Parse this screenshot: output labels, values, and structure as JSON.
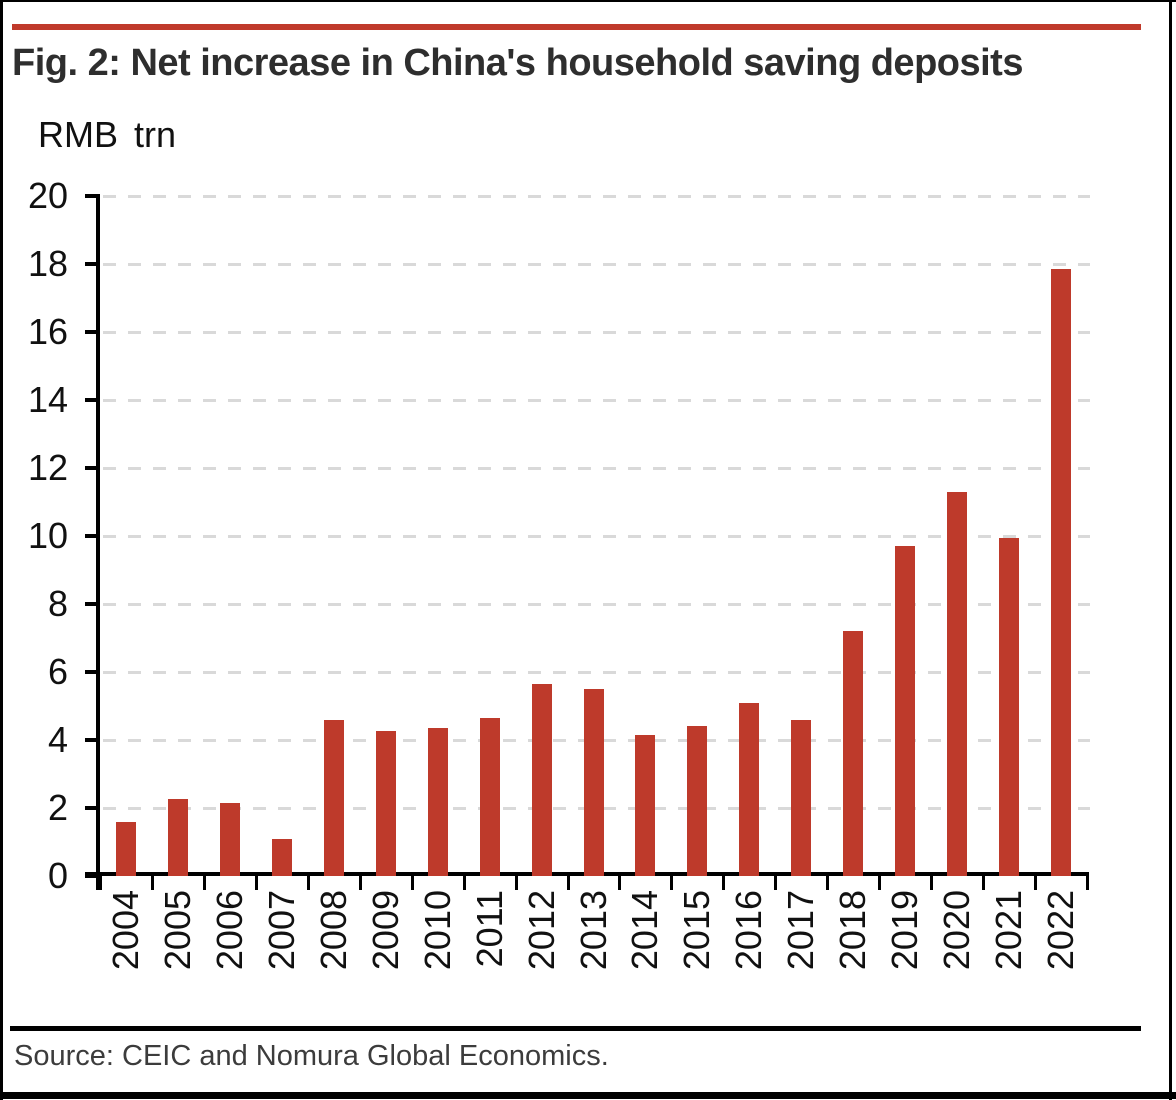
{
  "source_note": "Source: CEIC and Nomura Global Economics.",
  "colors": {
    "accent_red": "#c03a2b",
    "bar_red": "#be3a2b",
    "gridline_gray": "#d9d9d9",
    "title_text": "#2e2e2e",
    "axis_black": "#000000"
  },
  "chart_data": {
    "type": "bar",
    "title": "Fig. 2: Net increase in China's household saving deposits",
    "unit_label": "RMB trn",
    "categories": [
      "2004",
      "2005",
      "2006",
      "2007",
      "2008",
      "2009",
      "2010",
      "2011",
      "2012",
      "2013",
      "2014",
      "2015",
      "2016",
      "2017",
      "2018",
      "2019",
      "2020",
      "2021",
      "2022"
    ],
    "values": [
      1.6,
      2.25,
      2.15,
      1.1,
      4.6,
      4.25,
      4.35,
      4.65,
      5.65,
      5.5,
      4.15,
      4.4,
      5.1,
      4.6,
      7.2,
      9.7,
      11.3,
      9.95,
      17.85
    ],
    "ylim": [
      0,
      20
    ],
    "ytick_step": 2,
    "grid": "horizontal-dashed",
    "legend": "none",
    "bar_color": "#be3a2b"
  }
}
